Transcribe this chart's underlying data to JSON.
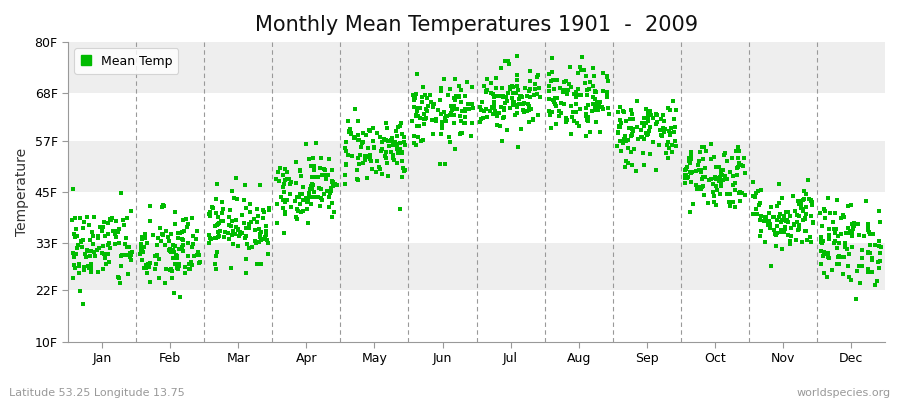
{
  "title": "Monthly Mean Temperatures 1901  -  2009",
  "ylabel": "Temperature",
  "xlabel_labels": [
    "Jan",
    "Feb",
    "Mar",
    "Apr",
    "May",
    "Jun",
    "Jul",
    "Aug",
    "Sep",
    "Oct",
    "Nov",
    "Dec"
  ],
  "bottom_left_text": "Latitude 53.25 Longitude 13.75",
  "bottom_right_text": "worldspecies.org",
  "legend_label": "Mean Temp",
  "ytick_labels": [
    "10F",
    "22F",
    "33F",
    "45F",
    "57F",
    "68F",
    "80F"
  ],
  "ytick_values": [
    10,
    22,
    33,
    45,
    57,
    68,
    80
  ],
  "dot_color": "#00BB00",
  "fig_background": "#FFFFFF",
  "plot_background": "#FFFFFF",
  "band_colors": [
    "#FFFFFF",
    "#EEEEEE"
  ],
  "n_years": 109,
  "monthly_means_f": [
    32,
    31,
    37,
    46,
    55,
    63,
    67,
    66,
    59,
    49,
    39,
    33
  ],
  "monthly_stds_f": [
    5,
    5,
    4,
    4,
    4,
    4,
    4,
    4,
    4,
    4,
    4,
    5
  ],
  "title_fontsize": 15,
  "axis_label_fontsize": 10,
  "tick_fontsize": 9,
  "dot_size": 5,
  "dpi": 100,
  "fig_width": 9.0,
  "fig_height": 4.0
}
